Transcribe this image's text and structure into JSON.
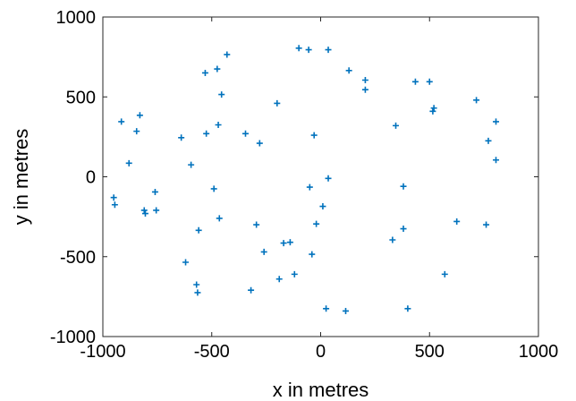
{
  "chart_data": {
    "type": "scatter",
    "title": "",
    "xlabel": "x in metres",
    "ylabel": "y in metres",
    "xlim": [
      -1000,
      1000
    ],
    "ylim": [
      -1000,
      1000
    ],
    "xticks": [
      "-1000",
      "-500",
      "0",
      "500",
      "1000"
    ],
    "yticks": [
      "-1000",
      "-500",
      "0",
      "500",
      "1000"
    ],
    "grid": false,
    "marker": "+",
    "marker_color": "#0072BD",
    "series": [
      {
        "points": [
          [
            -950,
            -130
          ],
          [
            -945,
            -175
          ],
          [
            -915,
            345
          ],
          [
            -880,
            85
          ],
          [
            -845,
            285
          ],
          [
            -830,
            385
          ],
          [
            -810,
            -210
          ],
          [
            -805,
            -230
          ],
          [
            -760,
            -95
          ],
          [
            -755,
            -210
          ],
          [
            -640,
            245
          ],
          [
            -620,
            -535
          ],
          [
            -595,
            75
          ],
          [
            -570,
            -675
          ],
          [
            -565,
            -725
          ],
          [
            -560,
            -335
          ],
          [
            -530,
            650
          ],
          [
            -525,
            270
          ],
          [
            -490,
            -75
          ],
          [
            -475,
            675
          ],
          [
            -470,
            325
          ],
          [
            -465,
            -260
          ],
          [
            -455,
            515
          ],
          [
            -430,
            765
          ],
          [
            -345,
            270
          ],
          [
            -320,
            -710
          ],
          [
            -295,
            -300
          ],
          [
            -280,
            210
          ],
          [
            -260,
            -470
          ],
          [
            -200,
            460
          ],
          [
            -190,
            -640
          ],
          [
            -170,
            -415
          ],
          [
            -140,
            -410
          ],
          [
            -120,
            -610
          ],
          [
            -100,
            805
          ],
          [
            -55,
            795
          ],
          [
            -50,
            -65
          ],
          [
            -40,
            -485
          ],
          [
            -30,
            260
          ],
          [
            -20,
            -295
          ],
          [
            10,
            -185
          ],
          [
            25,
            -825
          ],
          [
            35,
            795
          ],
          [
            35,
            -10
          ],
          [
            115,
            -840
          ],
          [
            130,
            665
          ],
          [
            205,
            605
          ],
          [
            205,
            545
          ],
          [
            330,
            -395
          ],
          [
            345,
            320
          ],
          [
            380,
            -60
          ],
          [
            380,
            -325
          ],
          [
            400,
            -825
          ],
          [
            435,
            595
          ],
          [
            500,
            595
          ],
          [
            515,
            410
          ],
          [
            520,
            430
          ],
          [
            570,
            -610
          ],
          [
            625,
            -280
          ],
          [
            715,
            480
          ],
          [
            760,
            -300
          ],
          [
            770,
            225
          ],
          [
            805,
            345
          ],
          [
            805,
            105
          ]
        ]
      }
    ]
  }
}
